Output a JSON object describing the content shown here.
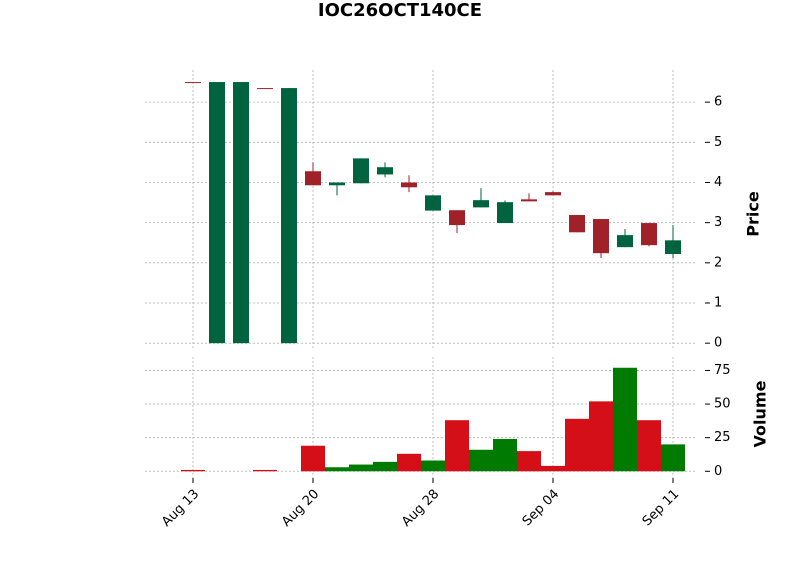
{
  "chart_data": {
    "type": "candlestick",
    "title": "IOC26OCT140CE",
    "categories": [
      "Aug 13",
      null,
      null,
      null,
      null,
      "Aug 20",
      null,
      null,
      null,
      null,
      "Aug 28",
      null,
      null,
      null,
      null,
      "Sep 04",
      null,
      null,
      null,
      null,
      "Sep 11"
    ],
    "open": [
      6.5,
      0,
      0,
      6.35,
      0,
      4.28,
      3.93,
      3.98,
      4.2,
      4.0,
      3.3,
      3.31,
      3.38,
      2.99,
      3.58,
      3.76,
      3.19,
      3.09,
      2.39,
      2.99,
      2.22
    ],
    "high": [
      6.5,
      6.5,
      6.5,
      6.35,
      6.35,
      4.5,
      4.0,
      4.6,
      4.5,
      4.18,
      3.68,
      3.31,
      3.86,
      3.55,
      3.73,
      3.78,
      3.19,
      3.09,
      2.84,
      2.99,
      2.94
    ],
    "low": [
      6.5,
      0,
      0,
      6.35,
      0,
      3.93,
      3.68,
      3.98,
      4.13,
      3.76,
      3.3,
      2.74,
      3.38,
      2.99,
      3.53,
      3.68,
      2.76,
      2.12,
      2.39,
      2.41,
      2.12
    ],
    "close": [
      6.5,
      6.5,
      6.5,
      6.35,
      6.35,
      3.93,
      4.0,
      4.6,
      4.38,
      3.88,
      3.68,
      2.94,
      3.56,
      3.51,
      3.53,
      3.68,
      2.76,
      2.24,
      2.69,
      2.44,
      2.56
    ],
    "volume": [
      1,
      0,
      0,
      1,
      0,
      19,
      3,
      5,
      7,
      13,
      8,
      38,
      16,
      24,
      15,
      4,
      39,
      52,
      77,
      38,
      20
    ],
    "ylabel": "Price",
    "volume_label": "Volume",
    "ylim": [
      -0.17,
      6.8
    ],
    "yticks": [
      0,
      1,
      2,
      3,
      4,
      5,
      6
    ],
    "volume_ylim": [
      -5,
      85
    ],
    "volume_ticks": [
      0,
      25,
      50,
      75
    ],
    "colors": {
      "up": "#006340",
      "down": "#a02128",
      "volume_up": "#007a00",
      "volume_down": "#d50f17"
    },
    "grid": true
  }
}
